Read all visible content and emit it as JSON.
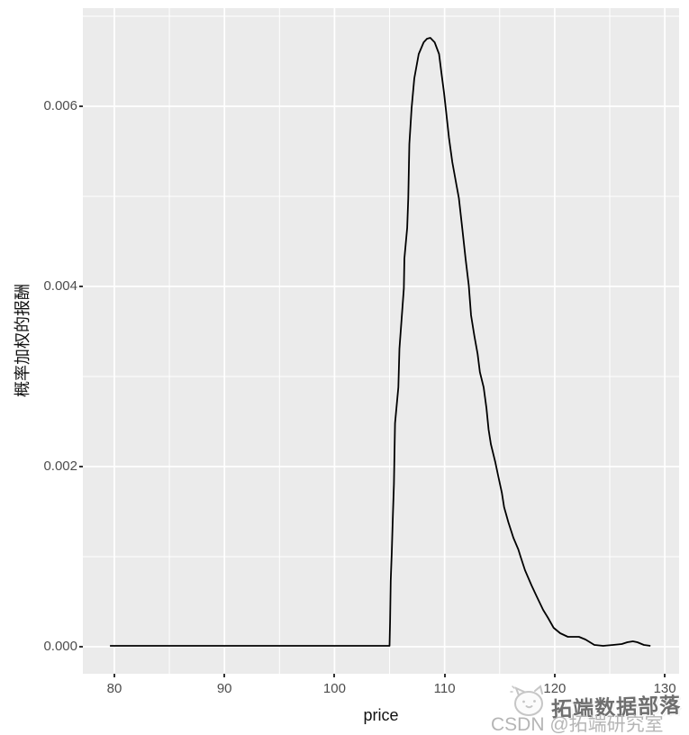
{
  "figure": {
    "x_axis": {
      "title": "price",
      "ticks": [
        80,
        90,
        100,
        110,
        120,
        130
      ],
      "minor_ticks": [
        85,
        95,
        105,
        115,
        125
      ]
    },
    "y_axis": {
      "title": "概率加权的报酬",
      "tick_labels": [
        "0.000",
        "0.002",
        "0.004",
        "0.006"
      ],
      "tick_values": [
        0,
        0.002,
        0.004,
        0.006
      ],
      "minor_tick_values": [
        0.001,
        0.003,
        0.005,
        0.007
      ]
    },
    "colors": {
      "panel_background": "#EBEBEB",
      "grid": "#FFFFFF",
      "curve": "#000000",
      "tick_text": "#4d4d4d",
      "tick_mark": "#333333",
      "axis_title": "#111111",
      "watermark_dark": "#6f6f6f",
      "watermark_light": "#b5b5b5"
    }
  },
  "chart_data": {
    "type": "line",
    "title": "",
    "xlabel": "price",
    "ylabel": "概率加权的报酬",
    "xlim": [
      77.14,
      131.3
    ],
    "ylim": [
      -0.0003,
      0.00709
    ],
    "grid": true,
    "legend": false,
    "background": "#EBEBEB",
    "series": [
      {
        "name": "概率加权的报酬",
        "x": [
          79.6,
          105.0,
          105.05,
          105.1,
          105.2,
          105.3,
          105.4,
          105.45,
          105.5,
          105.8,
          105.9,
          106.1,
          106.3,
          106.35,
          106.6,
          106.7,
          106.8,
          107.0,
          107.25,
          107.65,
          108.1,
          108.4,
          108.7,
          109.1,
          109.5,
          109.7,
          109.95,
          110.1,
          110.4,
          110.7,
          111.1,
          111.3,
          111.6,
          111.9,
          112.2,
          112.4,
          112.7,
          113.0,
          113.2,
          113.55,
          113.8,
          114.0,
          114.2,
          114.6,
          114.9,
          115.2,
          115.4,
          115.8,
          116.25,
          116.7,
          116.9,
          117.3,
          117.9,
          118.4,
          118.95,
          119.4,
          119.9,
          120.5,
          121.2,
          122.2,
          122.8,
          123.6,
          124.4,
          125.3,
          126.1,
          126.6,
          127.1,
          127.5,
          128.1,
          128.7
        ],
        "y": [
          1e-05,
          1e-05,
          0.00028,
          0.00073,
          0.00105,
          0.00145,
          0.00181,
          0.00215,
          0.00248,
          0.00288,
          0.00331,
          0.00365,
          0.00398,
          0.00431,
          0.00465,
          0.00498,
          0.00558,
          0.00598,
          0.00631,
          0.00658,
          0.00671,
          0.00675,
          0.00676,
          0.00671,
          0.00658,
          0.00638,
          0.00615,
          0.00598,
          0.00565,
          0.00538,
          0.00511,
          0.00498,
          0.00465,
          0.00431,
          0.00401,
          0.00368,
          0.00345,
          0.00325,
          0.00305,
          0.00288,
          0.00265,
          0.00241,
          0.00225,
          0.00205,
          0.00188,
          0.00171,
          0.00155,
          0.00138,
          0.00121,
          0.00108,
          0.001,
          0.00085,
          0.00068,
          0.00055,
          0.00041,
          0.00032,
          0.00021,
          0.00015,
          0.00011,
          0.00011,
          8e-05,
          2e-05,
          1e-05,
          2e-05,
          3e-05,
          5e-05,
          6e-05,
          5e-05,
          2e-05,
          1e-05
        ]
      }
    ]
  },
  "watermark": {
    "line1": "拓端数据部落",
    "line2": "CSDN @拓端研究室",
    "mascot": "cloud-cat-mascot-icon"
  }
}
